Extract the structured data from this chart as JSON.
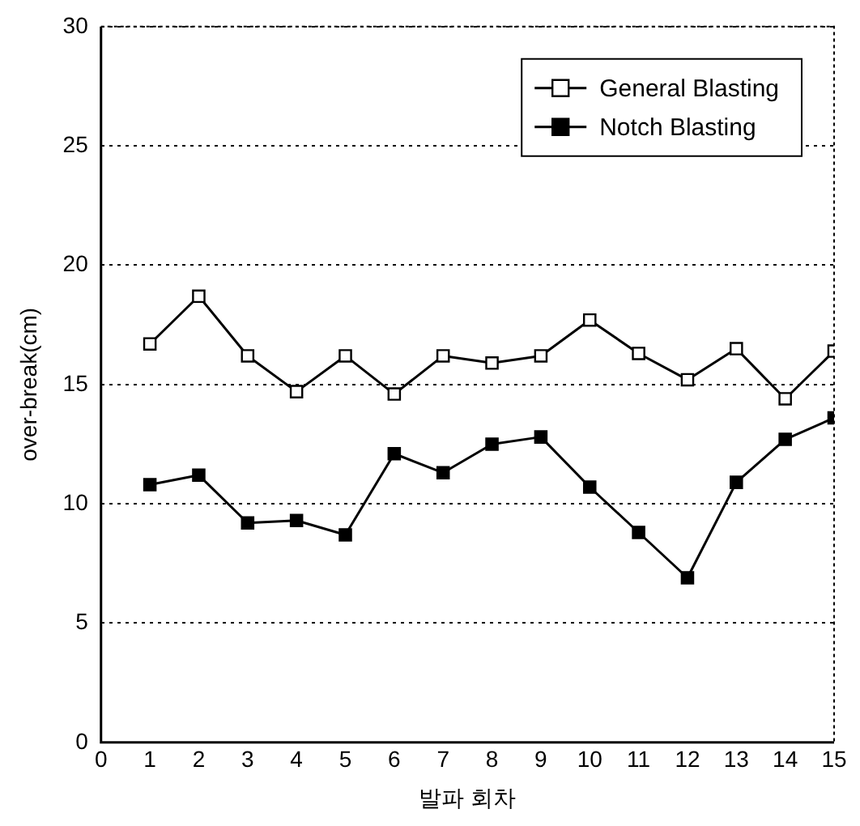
{
  "chart_data": {
    "type": "line",
    "xlabel": "발파 회차",
    "ylabel": "over-break(cm)",
    "x": [
      1,
      2,
      3,
      4,
      5,
      6,
      7,
      8,
      9,
      10,
      11,
      12,
      13,
      14,
      15
    ],
    "xlim": [
      0,
      15
    ],
    "xticks": [
      0,
      1,
      2,
      3,
      4,
      5,
      6,
      7,
      8,
      9,
      10,
      11,
      12,
      13,
      14,
      15
    ],
    "ylim": [
      0,
      30
    ],
    "yticks": [
      0,
      5,
      10,
      15,
      20,
      25,
      30
    ],
    "grid": "y",
    "legend": "top right",
    "marker": "square",
    "line_style": "solid",
    "series": [
      {
        "name": "General Blasting",
        "color": "#000000",
        "values": [
          16.7,
          18.7,
          16.2,
          14.7,
          16.2,
          14.6,
          16.2,
          15.9,
          16.2,
          17.7,
          16.3,
          15.2,
          16.5,
          14.4,
          16.4
        ]
      },
      {
        "name": "Notch Blasting",
        "color": "#000000",
        "values": [
          10.8,
          11.2,
          9.2,
          9.3,
          8.7,
          12.1,
          11.3,
          12.5,
          12.8,
          10.7,
          8.8,
          6.9,
          10.9,
          12.7,
          13.6
        ]
      }
    ]
  }
}
